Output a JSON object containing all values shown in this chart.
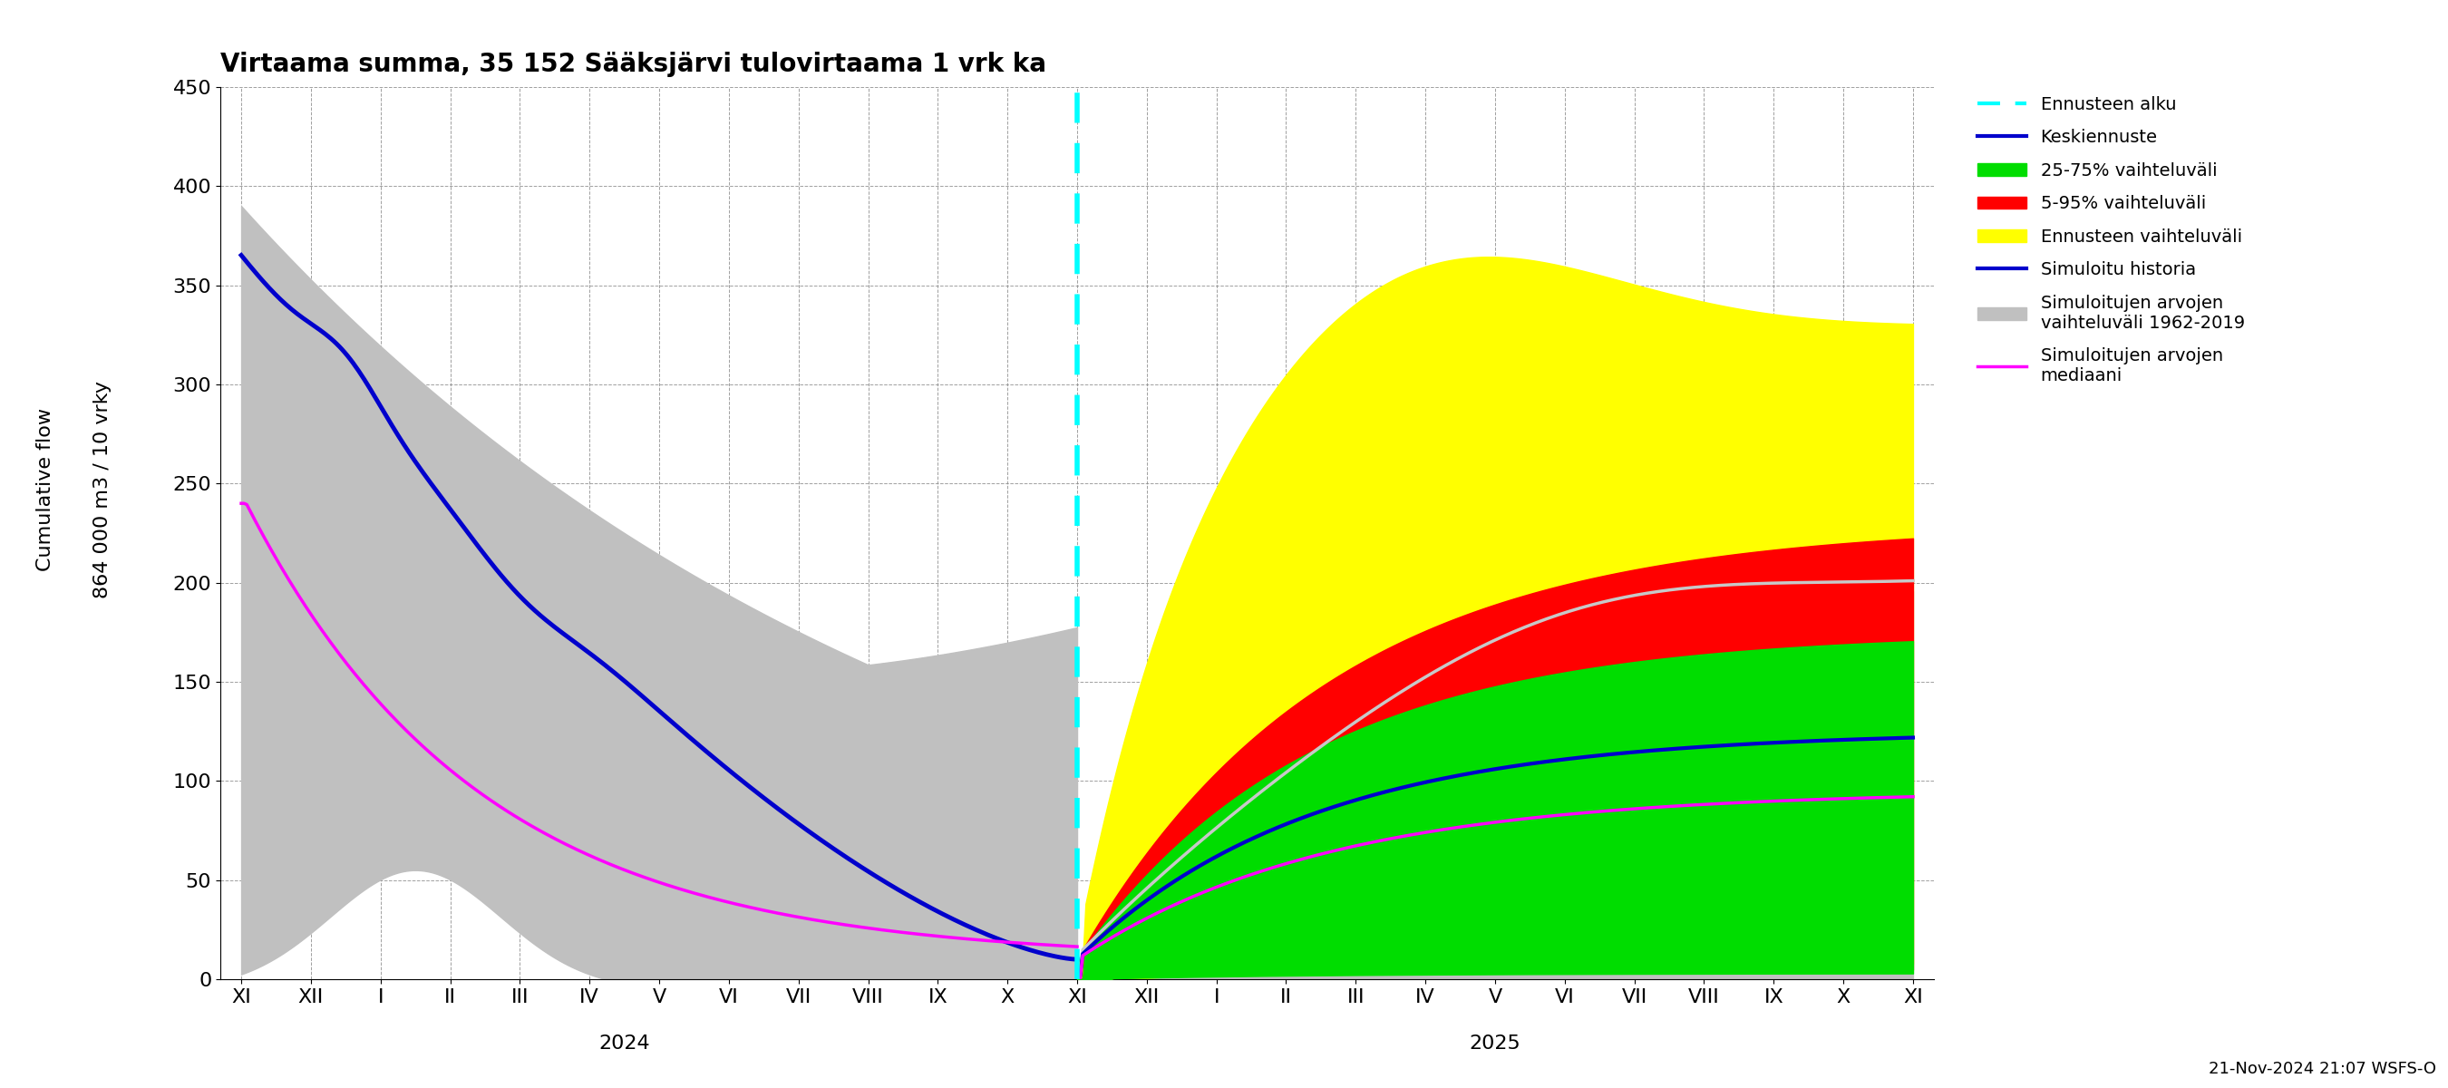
{
  "title": "Virtaama summa, 35 152 Sääksjärvi tulovirtaama 1 vrk ka",
  "ylabel_line1": "Cumulative flow",
  "ylabel_line2": "864 000 m3 / 10 vrky",
  "ylim": [
    0,
    450
  ],
  "yticks": [
    0,
    50,
    100,
    150,
    200,
    250,
    300,
    350,
    400,
    450
  ],
  "hist_tick_labels": [
    "XI",
    "XII",
    "I",
    "II",
    "III",
    "IV",
    "V",
    "VI",
    "VII",
    "VIII",
    "IX",
    "X",
    "XI"
  ],
  "fut_tick_labels": [
    "XII",
    "I",
    "II",
    "III",
    "IV",
    "V",
    "VI",
    "VII",
    "VIII",
    "IX",
    "X",
    "XI"
  ],
  "year_hist": "2024",
  "year_fut": "2025",
  "timestamp": "21-Nov-2024 21:07 WSFS-O",
  "forecast_x": 12,
  "xlim": [
    -0.3,
    24.3
  ],
  "colors": {
    "gray_band": "#c0c0c0",
    "yellow_band": "#ffff00",
    "red_band": "#ff0000",
    "green_band": "#00dd00",
    "blue_line": "#0000cc",
    "magenta_line": "#ff00ff",
    "lightgray_line": "#c8c8c8",
    "cyan_dashed": "#00ffff"
  },
  "legend_labels": [
    "Ennusteen alku",
    "Keskiennuste",
    "25-75% vaihteluväli",
    "5-95% vaihteluväli",
    "Ennusteen vaihteluväli",
    "Simuloitu historia",
    "Simuloitujen arvojen\nvaihteluväli 1962-2019",
    "Simuloitujen arvojen\nmediaani"
  ]
}
